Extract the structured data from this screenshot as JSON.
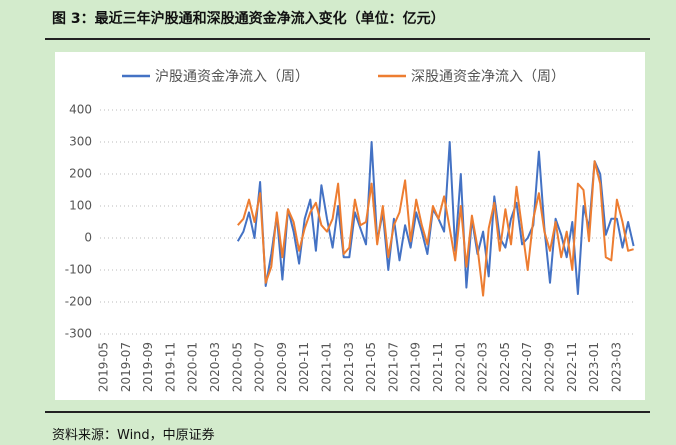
{
  "title": "图 3：最近三年沪股通和深股通资金净流入变化（单位：亿元）",
  "source": "资料来源：Wind，中原证券",
  "chart_data": {
    "type": "line",
    "categories": [
      "2019-05",
      null,
      null,
      null,
      "2019-07",
      null,
      null,
      null,
      "2019-09",
      null,
      null,
      null,
      "2019-11",
      null,
      null,
      null,
      "2020-01",
      null,
      null,
      null,
      "2020-03",
      null,
      null,
      null,
      "2020-05",
      null,
      null,
      null,
      "2020-07",
      null,
      null,
      null,
      "2020-09",
      null,
      null,
      null,
      "2020-11",
      null,
      null,
      null,
      "2021-01",
      null,
      null,
      null,
      "2021-03",
      null,
      null,
      null,
      "2021-05",
      null,
      null,
      null,
      "2021-07",
      null,
      null,
      null,
      "2021-09",
      null,
      null,
      null,
      "2021-11",
      null,
      null,
      null,
      "2022-01",
      null,
      null,
      null,
      "2022-03",
      null,
      null,
      null,
      "2022-05",
      null,
      null,
      null,
      "2022-07",
      null,
      null,
      null,
      "2022-09",
      null,
      null,
      null,
      "2022-11",
      null,
      null,
      null,
      "2023-01",
      null,
      null,
      null,
      "2023-03",
      null,
      null,
      null
    ],
    "series": [
      {
        "name": "沪股通资金净流入（周）",
        "color": "#4472c4",
        "values": [
          null,
          null,
          null,
          null,
          null,
          null,
          null,
          null,
          null,
          null,
          null,
          null,
          null,
          null,
          null,
          null,
          null,
          null,
          null,
          null,
          null,
          null,
          null,
          null,
          -10,
          20,
          80,
          0,
          175,
          -150,
          -50,
          70,
          -130,
          90,
          20,
          -80,
          60,
          120,
          -40,
          165,
          60,
          -30,
          100,
          -60,
          -60,
          80,
          30,
          -20,
          300,
          -10,
          80,
          -100,
          60,
          -70,
          40,
          -30,
          80,
          20,
          -50,
          90,
          60,
          20,
          300,
          -40,
          200,
          -155,
          60,
          -50,
          20,
          -120,
          130,
          0,
          -30,
          60,
          110,
          -20,
          0,
          40,
          270,
          30,
          -140,
          60,
          10,
          -60,
          50,
          -175,
          100,
          30,
          240,
          200,
          10,
          60,
          60,
          -30,
          50,
          -25
        ]
      },
      {
        "name": "深股通资金净流入（周）",
        "color": "#ed7d31",
        "values": [
          null,
          null,
          null,
          null,
          null,
          null,
          null,
          null,
          null,
          null,
          null,
          null,
          null,
          null,
          null,
          null,
          null,
          null,
          null,
          null,
          null,
          null,
          null,
          null,
          40,
          60,
          120,
          50,
          140,
          -140,
          -90,
          80,
          -60,
          90,
          50,
          -40,
          30,
          80,
          110,
          40,
          20,
          60,
          170,
          -50,
          -30,
          120,
          40,
          50,
          170,
          -20,
          100,
          -60,
          40,
          80,
          180,
          -10,
          120,
          40,
          -20,
          100,
          60,
          130,
          30,
          -70,
          100,
          -90,
          70,
          -30,
          -180,
          30,
          110,
          -40,
          90,
          -20,
          160,
          30,
          -100,
          60,
          140,
          20,
          -40,
          50,
          -60,
          20,
          -100,
          170,
          150,
          -10,
          240,
          170,
          -60,
          -70,
          120,
          50,
          -40,
          -35
        ]
      }
    ],
    "ylim": [
      -300,
      400
    ],
    "yticks": [
      -300,
      -200,
      -100,
      0,
      100,
      200,
      300,
      400
    ],
    "grid": true,
    "legend": "top"
  }
}
